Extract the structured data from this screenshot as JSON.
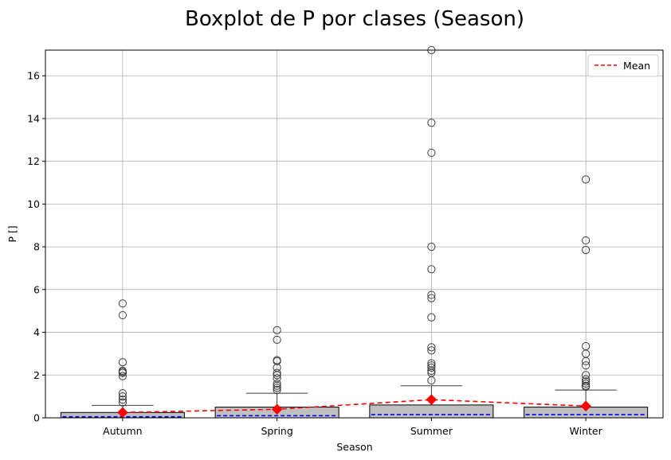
{
  "chart_data": {
    "type": "box",
    "title": "Boxplot de P por clases (Season)",
    "xlabel": "Season",
    "ylabel": "P []",
    "categories": [
      "Autumn",
      "Spring",
      "Summer",
      "Winter"
    ],
    "ylim": [
      0,
      17.2
    ],
    "yticks": [
      0,
      2,
      4,
      6,
      8,
      10,
      12,
      14,
      16
    ],
    "grid": true,
    "legend": {
      "position": "top-right",
      "entries": [
        {
          "label": "Mean",
          "style": "dashed",
          "color": "#ff0000"
        }
      ]
    },
    "colors": {
      "box_fill": "#c0c0c0",
      "median": "#0000ff",
      "mean": "#ff0000",
      "grid": "#b0b0b0",
      "whisker": "#3f3f3f"
    },
    "boxes": [
      {
        "category": "Autumn",
        "q1": 0.0,
        "median": 0.05,
        "q3": 0.25,
        "whisker_low": 0.0,
        "whisker_high": 0.58,
        "mean": 0.25,
        "outliers": [
          0.72,
          0.85,
          1.0,
          1.15,
          1.95,
          2.1,
          2.15,
          2.2,
          2.6,
          4.8,
          5.35
        ]
      },
      {
        "category": "Spring",
        "q1": 0.0,
        "median": 0.1,
        "q3": 0.5,
        "whisker_low": 0.0,
        "whisker_high": 1.15,
        "mean": 0.4,
        "outliers": [
          1.3,
          1.4,
          1.5,
          1.6,
          1.85,
          2.0,
          2.1,
          2.35,
          2.65,
          2.7,
          3.65,
          4.1
        ]
      },
      {
        "category": "Summer",
        "q1": 0.0,
        "median": 0.15,
        "q3": 0.6,
        "whisker_low": 0.0,
        "whisker_high": 1.5,
        "mean": 0.85,
        "outliers": [
          1.75,
          2.1,
          2.2,
          2.35,
          2.45,
          2.55,
          3.15,
          3.3,
          4.7,
          5.6,
          5.75,
          6.95,
          8.0,
          12.4,
          13.8,
          17.2
        ]
      },
      {
        "category": "Winter",
        "q1": 0.0,
        "median": 0.15,
        "q3": 0.5,
        "whisker_low": 0.0,
        "whisker_high": 1.3,
        "mean": 0.55,
        "outliers": [
          1.45,
          1.5,
          1.6,
          1.7,
          1.8,
          2.0,
          2.45,
          2.65,
          3.0,
          3.35,
          7.85,
          8.3,
          11.15
        ]
      }
    ]
  }
}
